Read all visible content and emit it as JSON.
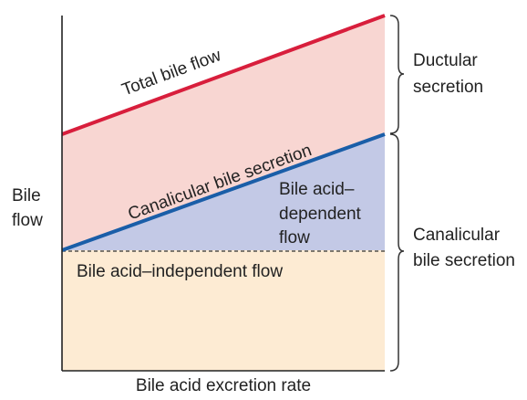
{
  "figure": {
    "y_axis_label_lines": [
      "Bile",
      "flow"
    ],
    "x_axis_label": "Bile acid excretion rate"
  },
  "lines": {
    "total": "Total bile flow",
    "canalicular": "Canalicular bile secretion"
  },
  "regions": {
    "dependent_lines": [
      "Bile acid–",
      "dependent",
      "flow"
    ],
    "independent": "Bile acid–independent flow"
  },
  "brackets": {
    "ductular_lines": [
      "Ductular",
      "secretion"
    ],
    "canalicular_lines": [
      "Canalicular",
      "bile secretion"
    ]
  },
  "colors": {
    "total_line": "#d81e3c",
    "canalicular_line": "#1a5ea8",
    "ductular_fill": "#f8d6d2",
    "dependent_fill": "#c3c9e6",
    "independent_fill": "#fdebd3"
  }
}
